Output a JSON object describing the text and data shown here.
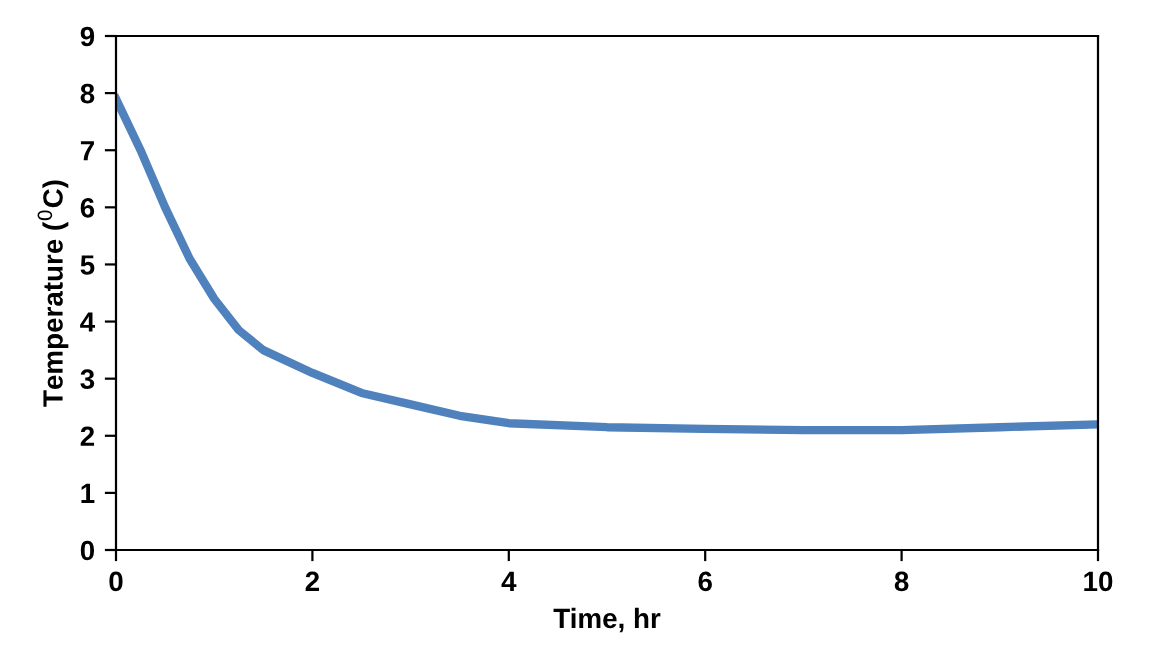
{
  "chart_data": {
    "type": "line",
    "xlabel": "Time, hr",
    "ylabel": "Temperature ($^{0}$C)",
    "x": [
      0,
      0.25,
      0.5,
      0.75,
      1.0,
      1.25,
      1.5,
      2.0,
      2.5,
      3.0,
      3.5,
      4.0,
      5.0,
      6.0,
      7.0,
      8.0,
      9.0,
      10.0
    ],
    "series": [
      {
        "color": "#4f81bd",
        "values": [
          7.9,
          7.0,
          6.0,
          5.1,
          4.4,
          3.85,
          3.5,
          3.1,
          2.75,
          2.55,
          2.35,
          2.22,
          2.15,
          2.12,
          2.1,
          2.1,
          2.15,
          2.2
        ]
      }
    ],
    "xlim": [
      0,
      10
    ],
    "xticks": [
      0,
      2,
      4,
      6,
      8,
      10
    ],
    "ylim": [
      0,
      9
    ],
    "yticks": [
      0,
      1,
      2,
      3,
      4,
      5,
      6,
      7,
      8,
      9
    ],
    "grid": false,
    "legend": false,
    "marker": "none",
    "line_style": "solid"
  }
}
